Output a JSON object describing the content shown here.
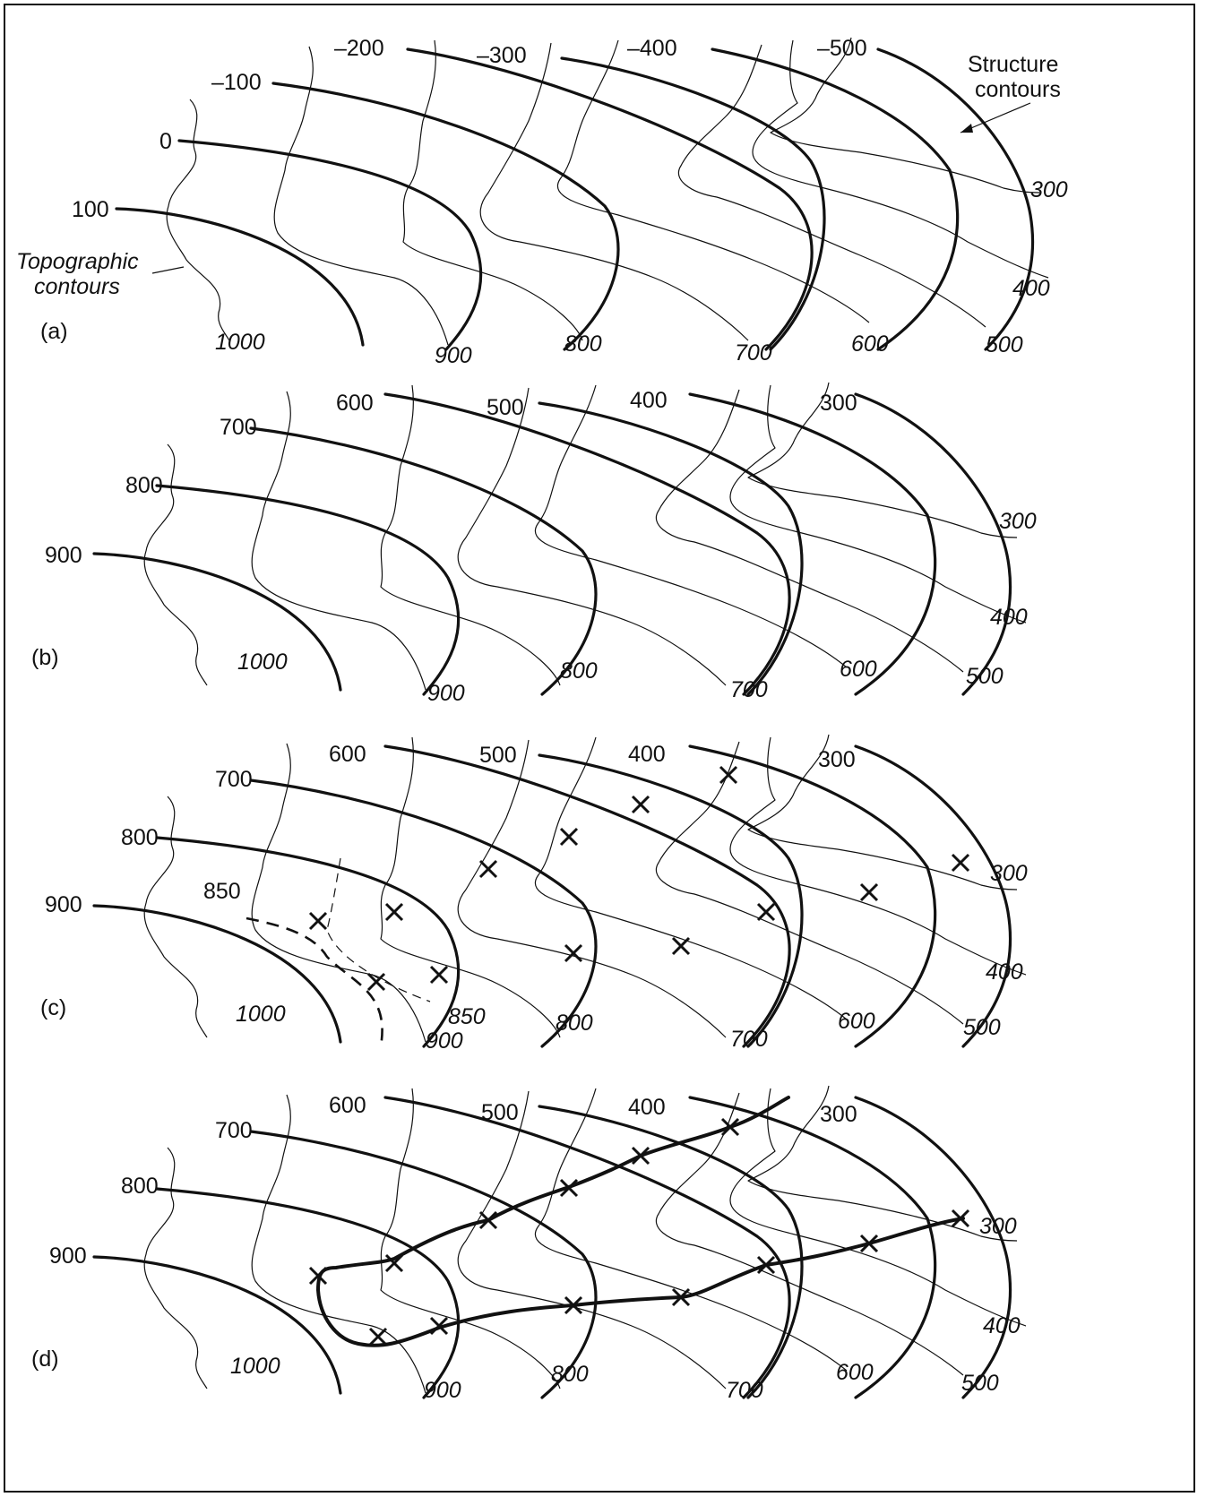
{
  "panels": [
    {
      "label": "(a)",
      "structure_labels": [
        "100",
        "0",
        "–100",
        "–200",
        "–300",
        "–400",
        "–500"
      ],
      "topo_labels": [
        "1000",
        "900",
        "800",
        "700",
        "600",
        "500",
        "400",
        "300"
      ],
      "annotation_structure": [
        "Structure",
        "contours"
      ],
      "annotation_topo": [
        "Topographic",
        "contours"
      ]
    },
    {
      "label": "(b)",
      "structure_labels": [
        "900",
        "800",
        "700",
        "600",
        "500",
        "400",
        "300"
      ],
      "topo_labels": [
        "1000",
        "900",
        "800",
        "700",
        "600",
        "500",
        "400",
        "300"
      ]
    },
    {
      "label": "(c)",
      "structure_labels": [
        "900",
        "800",
        "700",
        "600",
        "500",
        "400",
        "300"
      ],
      "extra_structure_label": "850",
      "topo_labels": [
        "1000",
        "900",
        "800",
        "700",
        "600",
        "500",
        "400",
        "300"
      ],
      "extra_topo_label": "850"
    },
    {
      "label": "(d)",
      "structure_labels": [
        "900",
        "800",
        "700",
        "600",
        "500",
        "400",
        "300"
      ],
      "topo_labels": [
        "1000",
        "900",
        "800",
        "700",
        "600",
        "500",
        "400",
        "300"
      ]
    }
  ]
}
